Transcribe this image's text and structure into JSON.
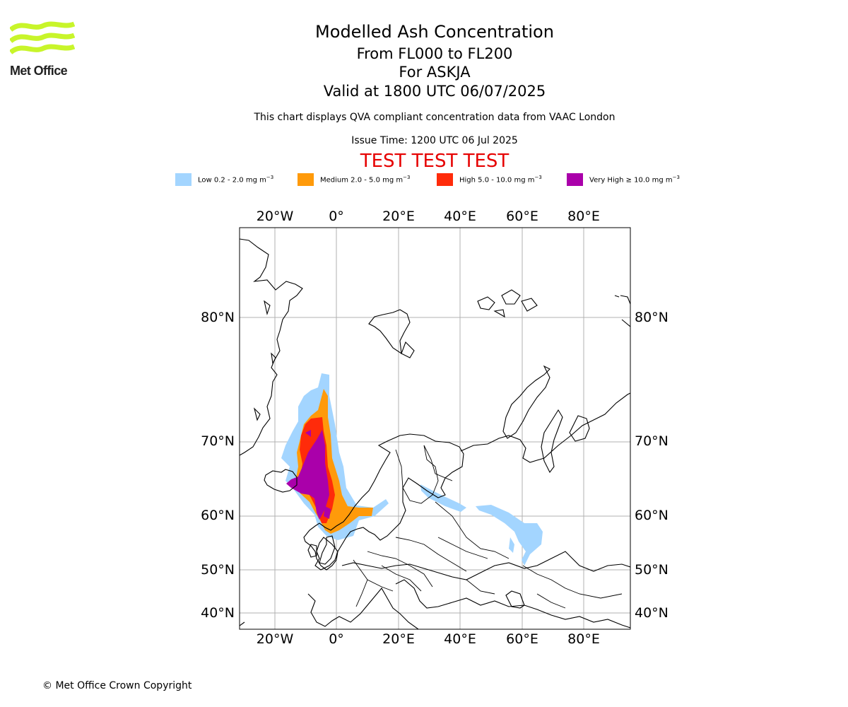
{
  "logo": {
    "text": "Met Office",
    "color": "#c8f52a"
  },
  "header": {
    "title": "Modelled Ash Concentration",
    "levels": "From FL000 to FL200",
    "volcano": "For ASKJA",
    "valid": "Valid at 1800 UTC 06/07/2025",
    "description": "This chart displays QVA compliant concentration data from VAAC London",
    "issue_time": "Issue Time: 1200 UTC 06 Jul 2025",
    "test_banner": "TEST TEST TEST",
    "test_banner_color": "#e60000"
  },
  "legend": [
    {
      "label": "Low 0.2 - 2.0 mg m",
      "unit_exp": "−3",
      "color": "#a3d5ff"
    },
    {
      "label": "Medium 2.0 - 5.0 mg m",
      "unit_exp": "−3",
      "color": "#ff9a0a"
    },
    {
      "label": "High 5.0 - 10.0 mg m",
      "unit_exp": "−3",
      "color": "#ff2b0a"
    },
    {
      "label": "Very High ≥ 10.0 mg m",
      "unit_exp": "−3",
      "color": "#aa00aa"
    }
  ],
  "map": {
    "lon_ticks": [
      "20°W",
      "0°",
      "20°E",
      "40°E",
      "60°E",
      "80°E"
    ],
    "lat_ticks": [
      "80°N",
      "70°N",
      "60°N",
      "50°N",
      "40°N"
    ],
    "grid": true
  },
  "footer": {
    "copyright": "© Met Office Crown Copyright"
  }
}
